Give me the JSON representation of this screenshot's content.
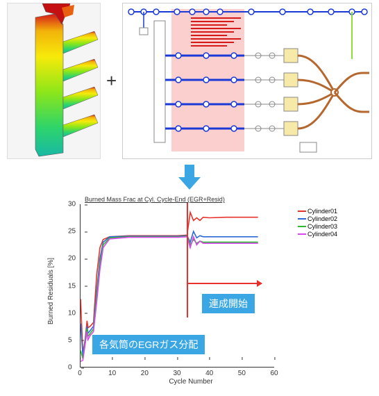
{
  "plus": "+",
  "callout1": "連成開始",
  "callout2": "各気筒のEGRガス分配",
  "chart": {
    "title": "Burned Mass Frac at Cyl. Cycle-End (EGR+Resid)",
    "ylabel": "Burned Residuals [%]",
    "xlabel": "Cycle Number",
    "xlim": [
      0,
      60
    ],
    "ylim": [
      0,
      30
    ],
    "xticks": [
      0,
      10,
      20,
      30,
      40,
      50,
      60
    ],
    "yticks": [
      0,
      5,
      10,
      15,
      20,
      25,
      30
    ],
    "coupling_start_x": 33,
    "series": [
      {
        "name": "Cylinder01",
        "color": "#e8312a",
        "data": [
          [
            0,
            12.5
          ],
          [
            0.7,
            2.5
          ],
          [
            1.4,
            5
          ],
          [
            2,
            8.5
          ],
          [
            2.3,
            7.2
          ],
          [
            3,
            7.5
          ],
          [
            4,
            8.2
          ],
          [
            5,
            17
          ],
          [
            6,
            22
          ],
          [
            7,
            23.5
          ],
          [
            9,
            24
          ],
          [
            15,
            24.2
          ],
          [
            20,
            24.2
          ],
          [
            25,
            24.2
          ],
          [
            30,
            24.2
          ],
          [
            33,
            24.3
          ],
          [
            34,
            28.5
          ],
          [
            35,
            27
          ],
          [
            36,
            27.5
          ],
          [
            37,
            27
          ],
          [
            38,
            27.6
          ],
          [
            40,
            27.5
          ],
          [
            45,
            27.6
          ],
          [
            50,
            27.6
          ],
          [
            55,
            27.6
          ]
        ]
      },
      {
        "name": "Cylinder02",
        "color": "#2a69d6",
        "data": [
          [
            0,
            8
          ],
          [
            0.7,
            2
          ],
          [
            1.5,
            5.2
          ],
          [
            2,
            7.5
          ],
          [
            2.3,
            6.2
          ],
          [
            3,
            6.7
          ],
          [
            4,
            7.5
          ],
          [
            5,
            14
          ],
          [
            6,
            20
          ],
          [
            7,
            23
          ],
          [
            9,
            24
          ],
          [
            15,
            24.1
          ],
          [
            20,
            24.1
          ],
          [
            25,
            24.1
          ],
          [
            30,
            24.1
          ],
          [
            33,
            24.2
          ],
          [
            34,
            23
          ],
          [
            35,
            25
          ],
          [
            36,
            23.8
          ],
          [
            37,
            24.2
          ],
          [
            38,
            24
          ],
          [
            40,
            24
          ],
          [
            45,
            24
          ],
          [
            50,
            24
          ],
          [
            55,
            24
          ]
        ]
      },
      {
        "name": "Cylinder03",
        "color": "#2fb92f",
        "data": [
          [
            0,
            3
          ],
          [
            0.7,
            1.5
          ],
          [
            1.5,
            4.8
          ],
          [
            2,
            7.0
          ],
          [
            2.3,
            5.6
          ],
          [
            3,
            6.2
          ],
          [
            4,
            7.0
          ],
          [
            5,
            13
          ],
          [
            6,
            19
          ],
          [
            7,
            22.5
          ],
          [
            9,
            23.8
          ],
          [
            15,
            24
          ],
          [
            20,
            24
          ],
          [
            25,
            24
          ],
          [
            30,
            24
          ],
          [
            33,
            24.1
          ],
          [
            34,
            22.5
          ],
          [
            35,
            23.5
          ],
          [
            36,
            22.8
          ],
          [
            37,
            23.2
          ],
          [
            38,
            23
          ],
          [
            40,
            23
          ],
          [
            45,
            23
          ],
          [
            50,
            23
          ],
          [
            55,
            23
          ]
        ]
      },
      {
        "name": "Cylinder04",
        "color": "#d946ef",
        "data": [
          [
            0,
            1
          ],
          [
            0.7,
            1.2
          ],
          [
            1.5,
            4.5
          ],
          [
            2,
            6.5
          ],
          [
            2.3,
            5.0
          ],
          [
            3,
            5.8
          ],
          [
            4,
            6.5
          ],
          [
            5,
            12
          ],
          [
            6,
            18
          ],
          [
            7,
            22
          ],
          [
            9,
            23.6
          ],
          [
            15,
            23.9
          ],
          [
            20,
            23.9
          ],
          [
            25,
            23.9
          ],
          [
            30,
            23.9
          ],
          [
            33,
            24
          ],
          [
            34,
            22
          ],
          [
            35,
            24
          ],
          [
            36,
            22.5
          ],
          [
            37,
            23.2
          ],
          [
            38,
            22.8
          ],
          [
            40,
            22.8
          ],
          [
            45,
            22.8
          ],
          [
            50,
            22.8
          ],
          [
            55,
            22.8
          ]
        ]
      }
    ]
  },
  "cfd_gradient_stops": [
    {
      "o": "0%",
      "c": "#d61a1a"
    },
    {
      "o": "12%",
      "c": "#f2b20a"
    },
    {
      "o": "30%",
      "c": "#f7ea0a"
    },
    {
      "o": "55%",
      "c": "#8ce619"
    },
    {
      "o": "80%",
      "c": "#2dd46b"
    },
    {
      "o": "100%",
      "c": "#19b8a6"
    }
  ],
  "sim_panel": {
    "highlight_color": "#fbc7c7",
    "text_color": "#d61a1a",
    "border_color": "#888",
    "line_blue": "#1a3ad6",
    "line_brown": "#b5672e",
    "block_fill": "#f7e9a8",
    "egr_line_color": "#8edc3a",
    "node_r": 4
  }
}
